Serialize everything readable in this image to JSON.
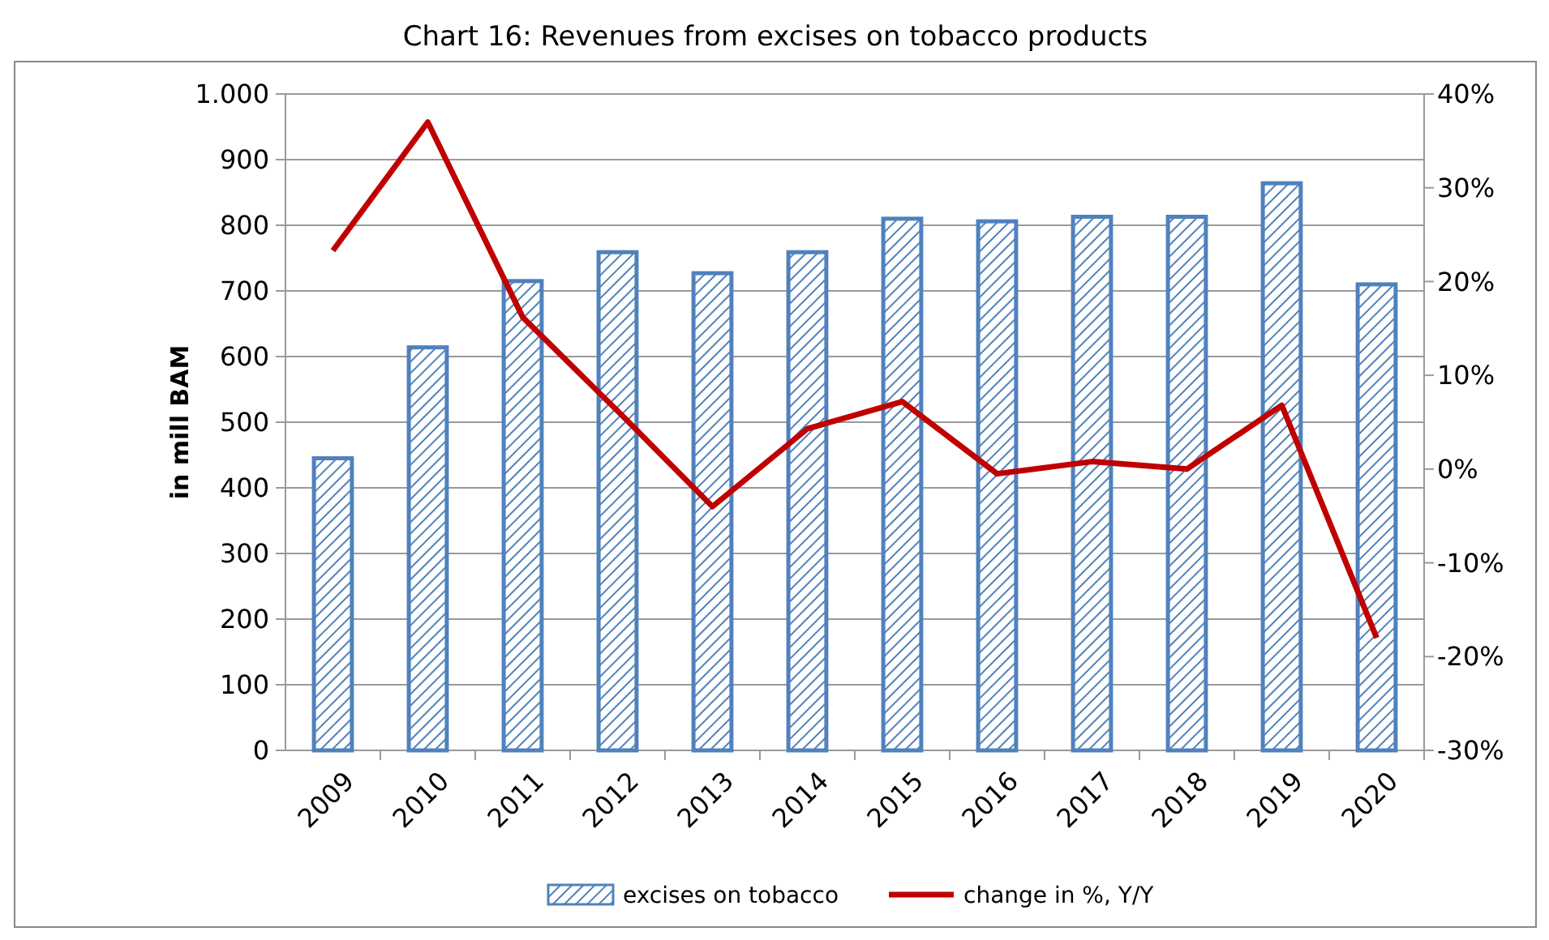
{
  "chart_data": {
    "type": "bar",
    "title": "Chart 16: Revenues from excises on tobacco products",
    "ylabel": "in mill BAM",
    "categories": [
      "2009",
      "2010",
      "2011",
      "2012",
      "2013",
      "2014",
      "2015",
      "2016",
      "2017",
      "2018",
      "2019",
      "2020"
    ],
    "series": [
      {
        "name": "excises on tobacco",
        "color": "#4f81bd",
        "values": [
          445,
          614,
          715,
          759,
          727,
          759,
          810,
          806,
          813,
          813,
          864,
          710
        ]
      },
      {
        "name": "change in %, Y/Y",
        "type": "line",
        "axis": "y2",
        "color": "#c00000",
        "values": [
          23.3,
          37.0,
          16.2,
          6.2,
          -4.0,
          4.3,
          7.2,
          -0.5,
          0.8,
          0.0,
          6.8,
          -18.0
        ]
      }
    ],
    "ylim": [
      0,
      1000
    ],
    "yticks": [
      0,
      100,
      200,
      300,
      400,
      500,
      600,
      700,
      800,
      900,
      {
        "value": 1000,
        "label": "1.000"
      }
    ],
    "y2lim": [
      -30,
      40
    ],
    "y2ticks": [
      {
        "value": -30,
        "label": "-30%"
      },
      {
        "value": -20,
        "label": "-20%"
      },
      {
        "value": -10,
        "label": "-10%"
      },
      {
        "value": 0,
        "label": "0%"
      },
      {
        "value": 10,
        "label": "10%"
      },
      {
        "value": 20,
        "label": "20%"
      },
      {
        "value": 30,
        "label": "30%"
      },
      {
        "value": 40,
        "label": "40%"
      }
    ],
    "grid": "y",
    "legend": "bottom",
    "marker": "none",
    "line_style": "solid"
  }
}
